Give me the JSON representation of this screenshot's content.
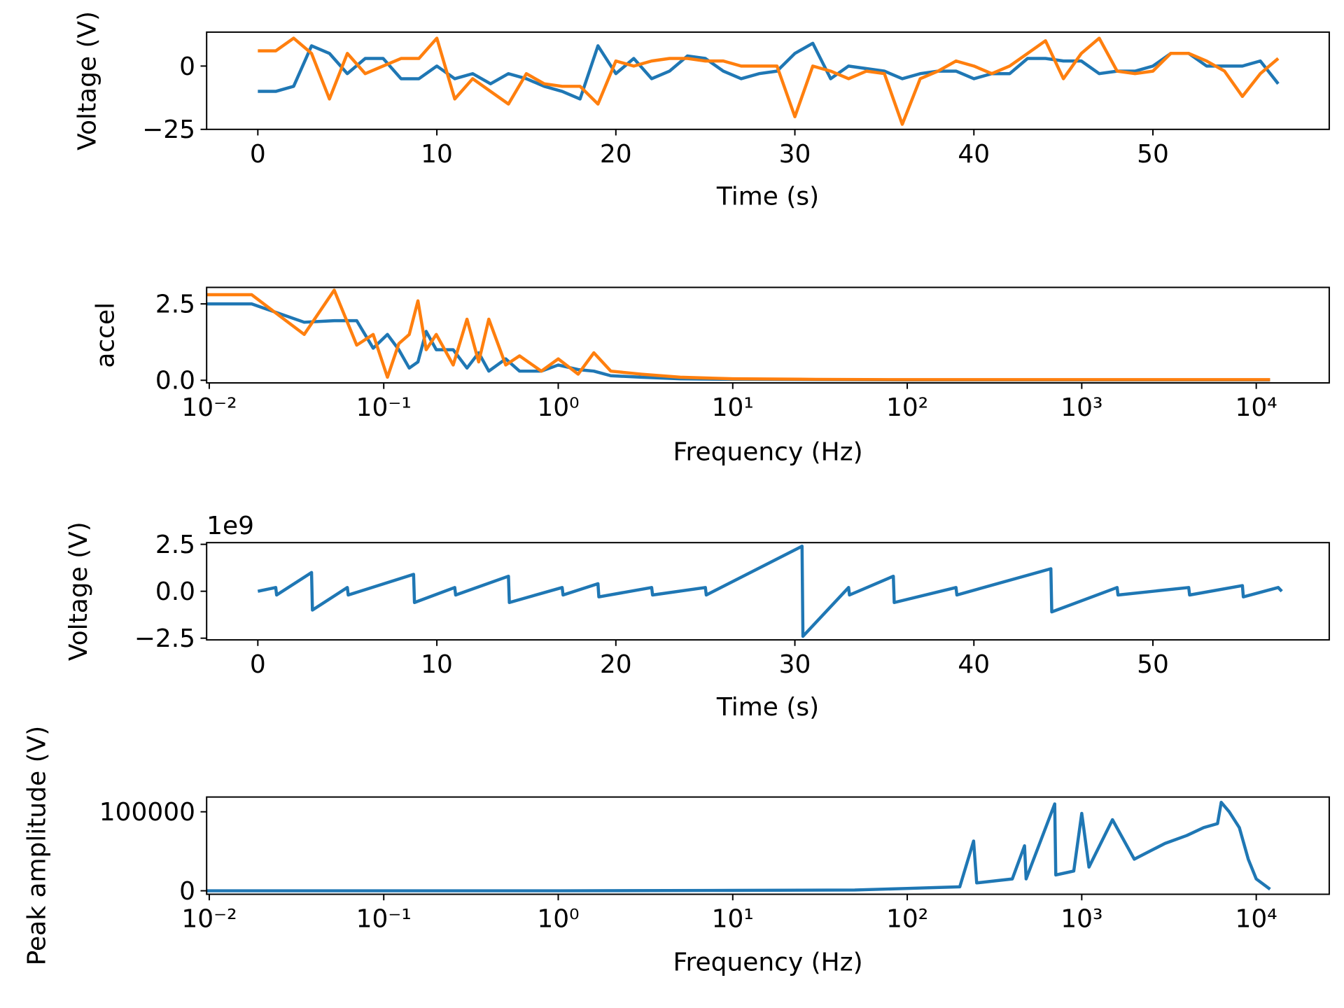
{
  "chart_data": [
    {
      "type": "line",
      "xscale": "linear",
      "xlabel": "Time (s)",
      "ylabel": "Voltage (V)",
      "xlim": [
        -2.86,
        59.85
      ],
      "ylim": [
        -25,
        13.4
      ],
      "xticks": [
        0,
        10,
        20,
        30,
        40,
        50
      ],
      "yticks": [
        {
          "value": -25,
          "label": "−25"
        },
        0
      ],
      "x": [
        0,
        1,
        2,
        3,
        4,
        5,
        6,
        7,
        8,
        9,
        10,
        11,
        12,
        13,
        14,
        15,
        16,
        17,
        18,
        19,
        20,
        21,
        22,
        23,
        24,
        25,
        26,
        27,
        28,
        29,
        30,
        31,
        32,
        33,
        34,
        35,
        36,
        37,
        38,
        39,
        40,
        41,
        42,
        43,
        44,
        45,
        46,
        47,
        48,
        49,
        50,
        51,
        52,
        53,
        54,
        55,
        56,
        57
      ],
      "series": [
        {
          "color": "#1f77b4",
          "values": [
            -10,
            -10,
            -8,
            8,
            5,
            -3,
            3,
            3,
            -5,
            -5,
            0,
            -5,
            -3,
            -7,
            -3,
            -5,
            -8,
            -10,
            -13,
            8,
            -3,
            3,
            -5,
            -2,
            4,
            3,
            -2,
            -5,
            -3,
            -2,
            5,
            9,
            -5,
            0,
            -1,
            -2,
            -5,
            -3,
            -2,
            -2,
            -5,
            -3,
            -3,
            3,
            3,
            2,
            2,
            -3,
            -2,
            -2,
            0,
            5,
            5,
            0,
            0,
            0,
            2,
            -7
          ]
        },
        {
          "color": "#ff7f0e",
          "values": [
            6,
            6,
            11,
            5,
            -13,
            5,
            -3,
            0,
            3,
            3,
            11,
            -13,
            -5,
            -10,
            -15,
            -3,
            -7,
            -8,
            -8,
            -15,
            2,
            0,
            2,
            3,
            3,
            2,
            2,
            0,
            0,
            0,
            -20,
            0,
            -2,
            -5,
            -2,
            -3,
            -23,
            -5,
            -2,
            2,
            0,
            -3,
            0,
            5,
            10,
            -5,
            5,
            11,
            -2,
            -3,
            -2,
            5,
            5,
            2,
            -2,
            -12,
            -3,
            3
          ]
        }
      ]
    },
    {
      "type": "line",
      "xscale": "log",
      "xlabel": "Frequency (Hz)",
      "ylabel": "accel",
      "xlim": [
        0.00966,
        26200
      ],
      "ylim": [
        -0.085,
        3.04
      ],
      "xticks": [
        {
          "value": 0.01,
          "label": "10⁻²"
        },
        {
          "value": 0.1,
          "label": "10⁻¹"
        },
        {
          "value": 1,
          "label": "10⁰"
        },
        {
          "value": 10,
          "label": "10¹"
        },
        {
          "value": 100,
          "label": "10²"
        },
        {
          "value": 1000,
          "label": "10³"
        },
        {
          "value": 10000,
          "label": "10⁴"
        }
      ],
      "yticks": [
        {
          "value": 0,
          "label": "0.0"
        },
        2.5
      ],
      "x": [
        0.0097,
        0.0175,
        0.035,
        0.052,
        0.07,
        0.087,
        0.105,
        0.122,
        0.14,
        0.157,
        0.175,
        0.2,
        0.25,
        0.3,
        0.35,
        0.4,
        0.5,
        0.6,
        0.8,
        1,
        1.3,
        1.6,
        2,
        3,
        5,
        10,
        30,
        100,
        1000,
        12000
      ],
      "series": [
        {
          "color": "#1f77b4",
          "values": [
            2.5,
            2.5,
            1.9,
            1.95,
            1.95,
            1.05,
            1.5,
            1.0,
            0.4,
            0.6,
            1.6,
            1.0,
            1.0,
            0.4,
            0.9,
            0.3,
            0.7,
            0.3,
            0.3,
            0.5,
            0.35,
            0.3,
            0.15,
            0.1,
            0.05,
            0.03,
            0.02,
            0.01,
            0.01,
            0.01
          ]
        },
        {
          "color": "#ff7f0e",
          "values": [
            2.8,
            2.8,
            1.5,
            2.95,
            1.15,
            1.5,
            0.1,
            1.2,
            1.5,
            2.6,
            1.0,
            1.5,
            0.5,
            2.0,
            0.6,
            2.0,
            0.5,
            0.8,
            0.3,
            0.7,
            0.2,
            0.9,
            0.3,
            0.2,
            0.1,
            0.05,
            0.03,
            0.02,
            0.02,
            0.02
          ]
        }
      ]
    },
    {
      "type": "line",
      "xscale": "linear",
      "xlabel": "Time (s)",
      "ylabel": "Voltage (V)",
      "offset_text": "1e9",
      "xlim": [
        -2.86,
        59.85
      ],
      "ylim": [
        -2.59,
        2.59
      ],
      "xticks": [
        0,
        10,
        20,
        30,
        40,
        50
      ],
      "yticks": [
        {
          "value": -2.5,
          "label": "−2.5"
        },
        {
          "value": 0,
          "label": "0.0"
        },
        2.5
      ],
      "x": [
        0,
        1,
        1.05,
        3,
        3.05,
        5,
        5.05,
        8.7,
        8.75,
        11,
        11.05,
        14,
        14.05,
        17,
        17.05,
        19,
        19.05,
        22,
        22.05,
        25,
        25.05,
        30.4,
        30.45,
        33,
        33.05,
        35.5,
        35.55,
        39,
        39.05,
        44.3,
        44.35,
        48,
        48.05,
        52,
        52.05,
        55,
        55.05,
        57,
        57.2
      ],
      "series": [
        {
          "color": "#1f77b4",
          "values": [
            0,
            0.2,
            -0.2,
            1.0,
            -1.0,
            0.2,
            -0.2,
            0.9,
            -0.6,
            0.2,
            -0.2,
            0.8,
            -0.6,
            0.2,
            -0.2,
            0.4,
            -0.3,
            0.2,
            -0.2,
            0.2,
            -0.2,
            2.4,
            -2.4,
            0.2,
            -0.2,
            0.8,
            -0.6,
            0.2,
            -0.2,
            1.2,
            -1.1,
            0.2,
            -0.2,
            0.2,
            -0.2,
            0.3,
            -0.3,
            0.2,
            0
          ]
        }
      ]
    },
    {
      "type": "line",
      "xscale": "log",
      "xlabel": "Frequency (Hz)",
      "ylabel": "Peak amplitude (V)",
      "xlim": [
        0.00966,
        26200
      ],
      "ylim": [
        -4400,
        118700
      ],
      "xticks": [
        {
          "value": 0.01,
          "label": "10⁻²"
        },
        {
          "value": 0.1,
          "label": "10⁻¹"
        },
        {
          "value": 1,
          "label": "10⁰"
        },
        {
          "value": 10,
          "label": "10¹"
        },
        {
          "value": 100,
          "label": "10²"
        },
        {
          "value": 1000,
          "label": "10³"
        },
        {
          "value": 10000,
          "label": "10⁴"
        }
      ],
      "yticks": [
        0,
        100000
      ],
      "x": [
        0.0097,
        1,
        10,
        50,
        100,
        200,
        240,
        250,
        400,
        470,
        480,
        700,
        710,
        900,
        1000,
        1100,
        1500,
        2000,
        3000,
        4000,
        5000,
        6000,
        6300,
        7000,
        8000,
        9000,
        10000,
        12000
      ],
      "series": [
        {
          "color": "#1f77b4",
          "values": [
            0,
            0,
            500,
            1000,
            3000,
            5000,
            63000,
            10000,
            15000,
            57000,
            15000,
            110000,
            20000,
            25000,
            98000,
            30000,
            90000,
            40000,
            60000,
            70000,
            80000,
            85000,
            112000,
            100000,
            80000,
            40000,
            15000,
            2000
          ]
        }
      ]
    }
  ]
}
